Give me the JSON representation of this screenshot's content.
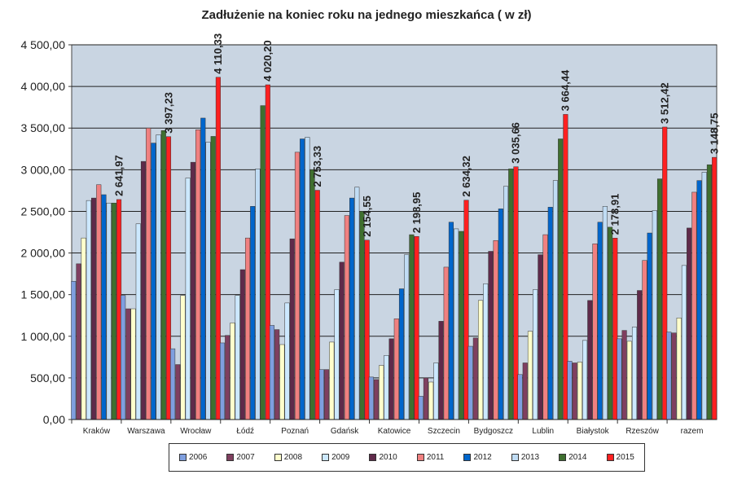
{
  "chart_data": {
    "type": "bar",
    "title": "Zadłużenie na koniec roku na jednego mieszkańca ( w zł)",
    "xlabel": "",
    "ylabel": "",
    "ylim": [
      0,
      4500
    ],
    "yticks": [
      "0,00",
      "500,00",
      "1 000,00",
      "1 500,00",
      "2 000,00",
      "2 500,00",
      "3 000,00",
      "3 500,00",
      "4 000,00",
      "4 500,00"
    ],
    "grid": true,
    "legend_position": "bottom",
    "categories": [
      "Kraków",
      "Warszawa",
      "Wrocław",
      "Łódź",
      "Poznań",
      "Gdańsk",
      "Katowice",
      "Szczecin",
      "Bydgoszcz",
      "Lublin",
      "Białystok",
      "Rzeszów",
      "razem"
    ],
    "series": [
      {
        "name": "2006",
        "color": "#7f9fdf",
        "values": [
          1660,
          1490,
          850,
          920,
          1130,
          600,
          510,
          280,
          880,
          540,
          700,
          970,
          1050
        ]
      },
      {
        "name": "2007",
        "color": "#7f3f5f",
        "values": [
          1870,
          1330,
          660,
          1010,
          1080,
          600,
          480,
          500,
          980,
          680,
          680,
          1070,
          1040
        ]
      },
      {
        "name": "2008",
        "color": "#ffffcc",
        "values": [
          2180,
          1330,
          1490,
          1160,
          900,
          930,
          650,
          450,
          1430,
          1060,
          690,
          940,
          1220
        ]
      },
      {
        "name": "2009",
        "color": "#cce8ff",
        "values": [
          2630,
          2350,
          2900,
          1490,
          1400,
          1560,
          770,
          680,
          1630,
          1560,
          950,
          1110,
          1850
        ]
      },
      {
        "name": "2010",
        "color": "#5f2a4a",
        "values": [
          2660,
          3100,
          3090,
          1800,
          2170,
          1890,
          970,
          1180,
          2020,
          1980,
          1430,
          1550,
          2300
        ]
      },
      {
        "name": "2011",
        "color": "#f08080",
        "values": [
          2820,
          3500,
          3480,
          2180,
          3210,
          2450,
          1210,
          1830,
          2150,
          2220,
          2110,
          1910,
          2730
        ]
      },
      {
        "name": "2012",
        "color": "#0066cc",
        "values": [
          2700,
          3320,
          3620,
          2560,
          3370,
          2660,
          1570,
          2370,
          2530,
          2550,
          2370,
          2240,
          2870
        ]
      },
      {
        "name": "2013",
        "color": "#c0dcf4",
        "values": [
          2600,
          3420,
          3330,
          3010,
          3390,
          2790,
          1980,
          2290,
          2800,
          2870,
          2560,
          2510,
          2970
        ]
      },
      {
        "name": "2014",
        "color": "#3f6f2f",
        "values": [
          2600,
          3470,
          3400,
          3770,
          3000,
          2500,
          2220,
          2260,
          3010,
          3370,
          2310,
          2890,
          3060
        ]
      },
      {
        "name": "2015",
        "color": "#ff2020",
        "values": [
          2641.97,
          3397.23,
          4110.33,
          4020.2,
          2753.33,
          2154.55,
          2198.95,
          2634.32,
          3035.66,
          3664.44,
          2178.91,
          3512.42,
          3148.75
        ]
      }
    ],
    "data_labels_2015": [
      "2 641,97",
      "3 397,23",
      "4 110,33",
      "4 020,20",
      "2 753,33",
      "2 154,55",
      "2 198,95",
      "2 634,32",
      "3 035,66",
      "3 664,44",
      "2 178,91",
      "3 512,42",
      "3 148,75"
    ]
  },
  "colors": {
    "plot_background": "#c9d5e2",
    "gridline": "#222222"
  }
}
